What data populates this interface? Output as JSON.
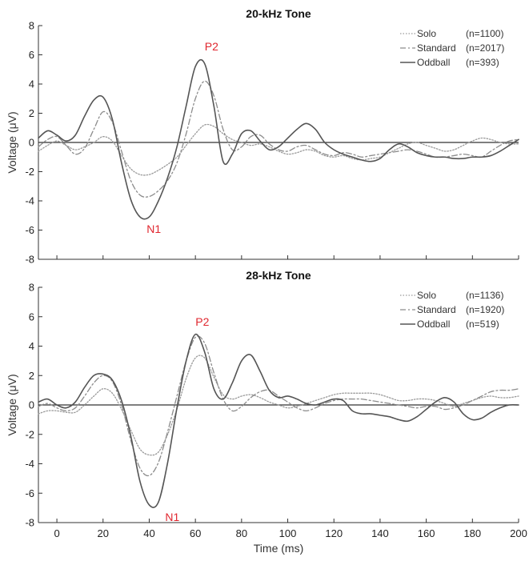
{
  "chart_data": [
    {
      "type": "line",
      "title": "20-kHz Tone",
      "xlabel": "",
      "ylabel": "Voltage (μV)",
      "xlim": [
        -8,
        200
      ],
      "ylim": [
        -8,
        8
      ],
      "xticks": [
        0,
        20,
        40,
        60,
        80,
        100,
        120,
        140,
        160,
        180,
        200
      ],
      "yticks": [
        -8,
        -6,
        -4,
        -2,
        0,
        2,
        4,
        6,
        8
      ],
      "grid": false,
      "legend_position": "top-right",
      "series": [
        {
          "name": "Solo",
          "count_label": "(n=1100)",
          "style": "dotted",
          "color": "#9a9a9a",
          "x": [
            -8,
            -4,
            0,
            4,
            8,
            12,
            16,
            20,
            24,
            28,
            32,
            36,
            40,
            44,
            48,
            52,
            56,
            60,
            64,
            68,
            72,
            76,
            80,
            84,
            88,
            92,
            96,
            100,
            104,
            108,
            112,
            116,
            120,
            124,
            128,
            132,
            136,
            140,
            144,
            148,
            152,
            156,
            160,
            164,
            168,
            172,
            176,
            180,
            184,
            188,
            192,
            196,
            200
          ],
          "values": [
            -0.6,
            -0.2,
            0.1,
            -0.2,
            -0.5,
            -0.3,
            0.0,
            0.4,
            0.1,
            -0.9,
            -1.8,
            -2.2,
            -2.2,
            -1.9,
            -1.5,
            -1.0,
            -0.2,
            0.6,
            1.2,
            1.1,
            0.6,
            0.2,
            0.0,
            -0.2,
            -0.1,
            -0.3,
            -0.6,
            -0.8,
            -0.7,
            -0.5,
            -0.6,
            -0.9,
            -1.0,
            -0.9,
            -1.1,
            -1.2,
            -1.1,
            -1.0,
            -0.7,
            -0.4,
            -0.1,
            0.0,
            -0.2,
            -0.4,
            -0.6,
            -0.5,
            -0.2,
            0.1,
            0.3,
            0.2,
            0.0,
            -0.1,
            -0.1
          ]
        },
        {
          "name": "Standard",
          "count_label": "(n=2017)",
          "style": "dashdot",
          "color": "#8c8c8c",
          "x": [
            -8,
            -4,
            0,
            4,
            8,
            12,
            16,
            20,
            24,
            28,
            32,
            36,
            40,
            44,
            48,
            52,
            56,
            60,
            64,
            68,
            72,
            76,
            80,
            84,
            88,
            92,
            96,
            100,
            104,
            108,
            112,
            116,
            120,
            124,
            128,
            132,
            136,
            140,
            144,
            148,
            152,
            156,
            160,
            164,
            168,
            172,
            176,
            180,
            184,
            188,
            192,
            196,
            200
          ],
          "values": [
            -0.3,
            0.2,
            0.4,
            -0.2,
            -0.8,
            -0.4,
            0.9,
            2.1,
            1.4,
            -0.6,
            -2.6,
            -3.6,
            -3.7,
            -3.3,
            -2.6,
            -1.4,
            0.6,
            3.0,
            4.2,
            3.2,
            0.9,
            -0.5,
            -0.3,
            0.4,
            0.5,
            -0.1,
            -0.5,
            -0.6,
            -0.3,
            -0.2,
            -0.5,
            -0.8,
            -0.9,
            -0.7,
            -0.8,
            -1.0,
            -0.9,
            -0.8,
            -0.7,
            -0.6,
            -0.5,
            -0.6,
            -0.8,
            -1.0,
            -1.0,
            -0.9,
            -0.8,
            -0.9,
            -1.0,
            -0.6,
            -0.2,
            0.1,
            0.2
          ]
        },
        {
          "name": "Oddball",
          "count_label": "(n=393)",
          "style": "solid",
          "color": "#555555",
          "x": [
            -8,
            -4,
            0,
            4,
            8,
            12,
            16,
            20,
            24,
            28,
            32,
            36,
            40,
            44,
            48,
            52,
            56,
            60,
            64,
            68,
            72,
            76,
            80,
            84,
            88,
            92,
            96,
            100,
            104,
            108,
            112,
            116,
            120,
            124,
            128,
            132,
            136,
            140,
            144,
            148,
            152,
            156,
            160,
            164,
            168,
            172,
            176,
            180,
            184,
            188,
            192,
            196,
            200
          ],
          "values": [
            0.3,
            0.8,
            0.5,
            0.1,
            0.5,
            1.8,
            2.9,
            3.1,
            1.6,
            -1.4,
            -3.9,
            -5.1,
            -5.1,
            -4.0,
            -2.4,
            -0.3,
            2.5,
            5.2,
            5.4,
            2.5,
            -1.3,
            -0.8,
            0.6,
            0.8,
            0.1,
            -0.5,
            -0.3,
            0.3,
            0.9,
            1.3,
            0.9,
            0.0,
            -0.5,
            -0.8,
            -1.0,
            -1.2,
            -1.3,
            -1.1,
            -0.5,
            -0.1,
            -0.3,
            -0.7,
            -0.9,
            -1.0,
            -1.0,
            -1.1,
            -1.1,
            -1.0,
            -1.0,
            -0.9,
            -0.6,
            -0.2,
            0.2
          ]
        }
      ],
      "annotations": [
        {
          "text": "N1",
          "x": 42,
          "y": -6.2,
          "color": "#e0262e"
        },
        {
          "text": "P2",
          "x": 67,
          "y": 6.3,
          "color": "#e0262e"
        }
      ]
    },
    {
      "type": "line",
      "title": "28-kHz Tone",
      "xlabel": "Time (ms)",
      "ylabel": "Voltage (μV)",
      "xlim": [
        -8,
        200
      ],
      "ylim": [
        -8,
        8
      ],
      "xticks": [
        0,
        20,
        40,
        60,
        80,
        100,
        120,
        140,
        160,
        180,
        200
      ],
      "yticks": [
        -8,
        -6,
        -4,
        -2,
        0,
        2,
        4,
        6,
        8
      ],
      "grid": false,
      "legend_position": "top-right",
      "series": [
        {
          "name": "Solo",
          "count_label": "(n=1136)",
          "style": "dotted",
          "color": "#9a9a9a",
          "x": [
            -8,
            -4,
            0,
            4,
            8,
            12,
            16,
            20,
            24,
            28,
            32,
            36,
            40,
            44,
            48,
            52,
            56,
            60,
            64,
            68,
            72,
            76,
            80,
            84,
            88,
            92,
            96,
            100,
            104,
            108,
            112,
            116,
            120,
            124,
            128,
            132,
            136,
            140,
            144,
            148,
            152,
            156,
            160,
            164,
            168,
            172,
            176,
            180,
            184,
            188,
            192,
            196,
            200
          ],
          "values": [
            -0.6,
            -0.4,
            -0.4,
            -0.5,
            -0.5,
            0.0,
            0.6,
            1.1,
            0.8,
            -0.3,
            -1.7,
            -3.0,
            -3.4,
            -3.2,
            -2.0,
            -0.3,
            1.8,
            3.2,
            3.2,
            1.9,
            0.7,
            0.4,
            0.6,
            0.7,
            0.5,
            0.2,
            0.0,
            -0.2,
            -0.1,
            0.1,
            0.3,
            0.5,
            0.7,
            0.8,
            0.8,
            0.8,
            0.8,
            0.7,
            0.5,
            0.3,
            0.3,
            0.4,
            0.4,
            0.3,
            0.1,
            -0.1,
            0.1,
            0.3,
            0.5,
            0.6,
            0.5,
            0.5,
            0.6
          ]
        },
        {
          "name": "Standard",
          "count_label": "(n=1920)",
          "style": "dashdot",
          "color": "#8c8c8c",
          "x": [
            -8,
            -4,
            0,
            4,
            8,
            12,
            16,
            20,
            24,
            28,
            32,
            36,
            40,
            44,
            48,
            52,
            56,
            60,
            64,
            68,
            72,
            76,
            80,
            84,
            88,
            92,
            96,
            100,
            104,
            108,
            112,
            116,
            120,
            124,
            128,
            132,
            136,
            140,
            144,
            148,
            152,
            156,
            160,
            164,
            168,
            172,
            176,
            180,
            184,
            188,
            192,
            196,
            200
          ],
          "values": [
            -0.1,
            0.1,
            -0.2,
            -0.4,
            -0.2,
            0.6,
            1.5,
            2.0,
            1.6,
            0.0,
            -2.4,
            -4.3,
            -4.8,
            -3.9,
            -1.8,
            0.6,
            3.0,
            4.6,
            4.2,
            2.2,
            0.4,
            -0.4,
            -0.1,
            0.5,
            0.9,
            1.0,
            0.6,
            0.2,
            -0.2,
            -0.4,
            -0.2,
            0.1,
            0.3,
            0.4,
            0.4,
            0.4,
            0.3,
            0.2,
            0.1,
            0.0,
            -0.1,
            -0.2,
            -0.1,
            -0.1,
            -0.3,
            -0.2,
            0.0,
            0.3,
            0.6,
            0.9,
            1.0,
            1.0,
            1.1
          ]
        },
        {
          "name": "Oddball",
          "count_label": "(n=519)",
          "style": "solid",
          "color": "#555555",
          "x": [
            -8,
            -4,
            0,
            4,
            8,
            12,
            16,
            20,
            24,
            28,
            32,
            36,
            40,
            44,
            48,
            52,
            56,
            60,
            64,
            68,
            72,
            76,
            80,
            84,
            88,
            92,
            96,
            100,
            104,
            108,
            112,
            116,
            120,
            124,
            128,
            132,
            136,
            140,
            144,
            148,
            152,
            156,
            160,
            164,
            168,
            172,
            176,
            180,
            184,
            188,
            192,
            196,
            200
          ],
          "values": [
            0.2,
            0.4,
            0.0,
            -0.2,
            0.2,
            1.2,
            2.0,
            2.1,
            1.7,
            0.3,
            -2.1,
            -5.2,
            -6.8,
            -6.6,
            -3.9,
            -0.2,
            3.0,
            4.8,
            3.6,
            1.1,
            0.4,
            1.5,
            3.0,
            3.4,
            2.3,
            1.0,
            0.5,
            0.6,
            0.4,
            0.1,
            0.0,
            0.2,
            0.4,
            0.3,
            -0.4,
            -0.6,
            -0.6,
            -0.7,
            -0.8,
            -1.0,
            -1.1,
            -0.8,
            -0.3,
            0.2,
            0.5,
            0.2,
            -0.6,
            -1.0,
            -0.9,
            -0.5,
            -0.2,
            0.0,
            0.0
          ]
        }
      ],
      "annotations": [
        {
          "text": "N1",
          "x": 50,
          "y": -7.9,
          "color": "#e0262e"
        },
        {
          "text": "P2",
          "x": 63,
          "y": 5.4,
          "color": "#e0262e"
        }
      ]
    }
  ]
}
